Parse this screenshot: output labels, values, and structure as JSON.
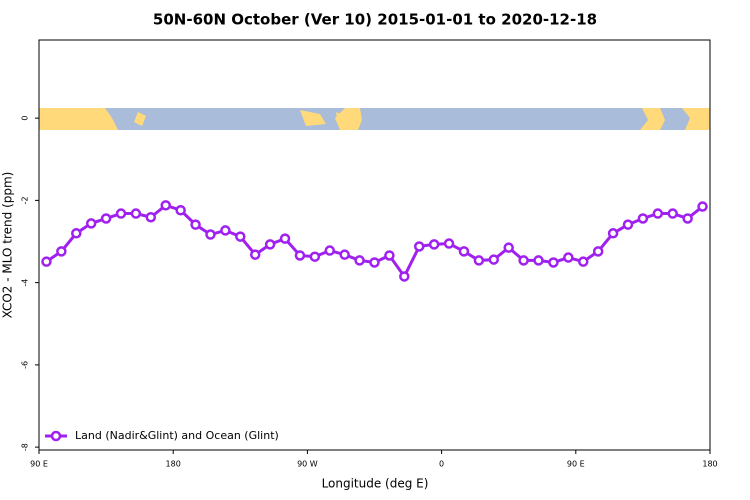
{
  "chart_data": {
    "type": "line",
    "title": "50N-60N October (Ver 10)   2015-01-01 to 2020-12-18",
    "xlabel": "Longitude (deg E)",
    "ylabel": "XCO2 - MLO trend (ppm)",
    "x": [
      95,
      105,
      115,
      125,
      135,
      145,
      155,
      165,
      175,
      185,
      195,
      205,
      215,
      225,
      235,
      245,
      255,
      265,
      275,
      285,
      295,
      305,
      315,
      325,
      335,
      345,
      355,
      365,
      375,
      385,
      395,
      405,
      415,
      425,
      435,
      445,
      455,
      465,
      475,
      485,
      495,
      505,
      515,
      525,
      535
    ],
    "series": [
      {
        "name": "Land (Nadir&Glint) and Ocean (Glint)",
        "color": "#a020f0",
        "values": [
          -3.49,
          -3.24,
          -2.8,
          -2.56,
          -2.44,
          -2.32,
          -2.32,
          -2.41,
          -2.12,
          -2.24,
          -2.59,
          -2.83,
          -2.73,
          -2.88,
          -3.32,
          -3.07,
          -2.93,
          -3.34,
          -3.37,
          -3.22,
          -3.32,
          -3.46,
          -3.51,
          -3.34,
          -3.85,
          -3.12,
          -3.07,
          -3.05,
          -3.24,
          -3.46,
          -3.44,
          -3.15,
          -3.46,
          -3.46,
          -3.51,
          -3.39,
          -3.49,
          -3.24,
          -2.8,
          -2.59,
          -2.44,
          -2.32,
          -2.32,
          -2.44,
          -2.15
        ]
      }
    ],
    "xlim": [
      90,
      540
    ],
    "xticks": [
      {
        "value": 90,
        "label": "90 E"
      },
      180,
      {
        "value": 270,
        "label": "90 W"
      },
      {
        "value": 360,
        "label": "0"
      },
      {
        "value": 450,
        "label": "90 E"
      },
      {
        "value": 540,
        "label": "180"
      }
    ],
    "ylim": [
      -8.07,
      1.9
    ],
    "yticks": [
      0,
      -2,
      -4,
      -6,
      -8
    ],
    "legend": "bottom-left"
  }
}
